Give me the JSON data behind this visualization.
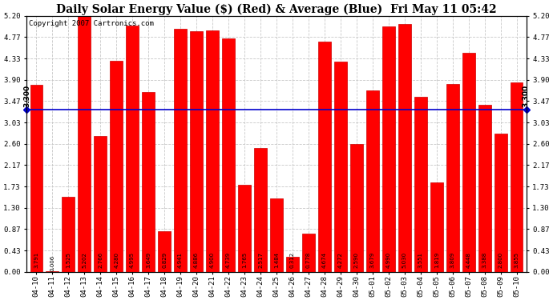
{
  "title": "Daily Solar Energy Value ($) (Red) & Average (Blue)  Fri May 11 05:42",
  "copyright": "Copyright 2007 Cartronics.com",
  "categories": [
    "04-10",
    "04-11",
    "04-12",
    "04-13",
    "04-14",
    "04-15",
    "04-16",
    "04-17",
    "04-18",
    "04-19",
    "04-20",
    "04-21",
    "04-22",
    "04-23",
    "04-24",
    "04-25",
    "04-26",
    "04-27",
    "04-28",
    "04-29",
    "04-30",
    "05-01",
    "05-02",
    "05-03",
    "05-04",
    "05-05",
    "05-06",
    "05-07",
    "05-08",
    "05-09",
    "05-10"
  ],
  "values": [
    3.791,
    0.006,
    1.525,
    5.202,
    2.766,
    4.28,
    4.995,
    3.649,
    0.829,
    4.941,
    4.886,
    4.9,
    4.739,
    1.765,
    2.517,
    1.484,
    0.312,
    0.778,
    4.674,
    4.272,
    2.59,
    3.679,
    4.99,
    5.03,
    3.551,
    1.819,
    3.809,
    4.448,
    3.388,
    2.8,
    3.855
  ],
  "average": 3.3,
  "bar_color": "#ff0000",
  "avg_line_color": "#0000cd",
  "background_color": "#ffffff",
  "plot_bg_color": "#ffffff",
  "grid_color": "#c8c8c8",
  "ylim": [
    0.0,
    5.2
  ],
  "yticks": [
    0.0,
    0.43,
    0.87,
    1.3,
    1.73,
    2.17,
    2.6,
    3.03,
    3.47,
    3.9,
    4.33,
    4.77,
    5.2
  ],
  "avg_label": "3.300",
  "title_fontsize": 10,
  "copyright_fontsize": 6.5,
  "value_fontsize": 5.0,
  "tick_fontsize": 6.5,
  "bar_width": 0.78
}
